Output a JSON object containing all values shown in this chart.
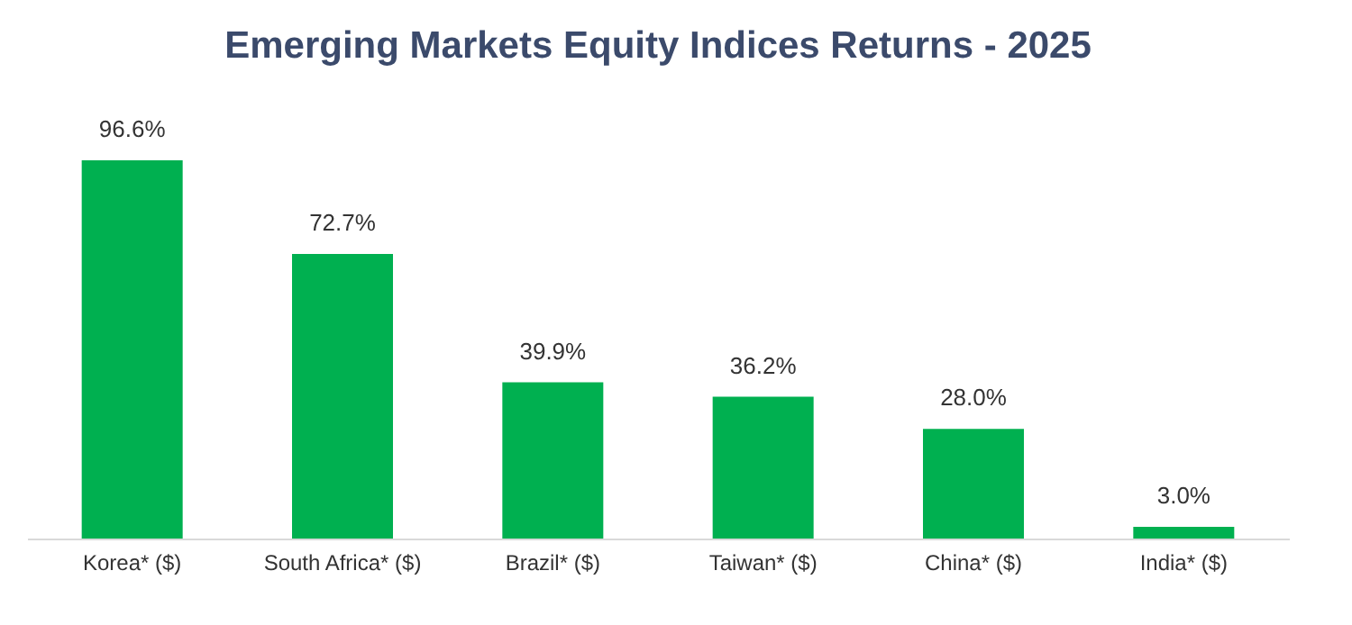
{
  "chart_data": {
    "type": "bar",
    "title": "Emerging Markets Equity Indices Returns - 2025",
    "categories": [
      "Korea* ($)",
      "South Africa* ($)",
      "Brazil* ($)",
      "Taiwan* ($)",
      "China* ($)",
      "India* ($)"
    ],
    "values": [
      96.6,
      72.7,
      39.9,
      36.2,
      28.0,
      3.0
    ],
    "value_labels": [
      "96.6%",
      "72.7%",
      "39.9%",
      "36.2%",
      "28.0%",
      "3.0%"
    ],
    "color": "#00b050",
    "tick_labels": "x"
  }
}
